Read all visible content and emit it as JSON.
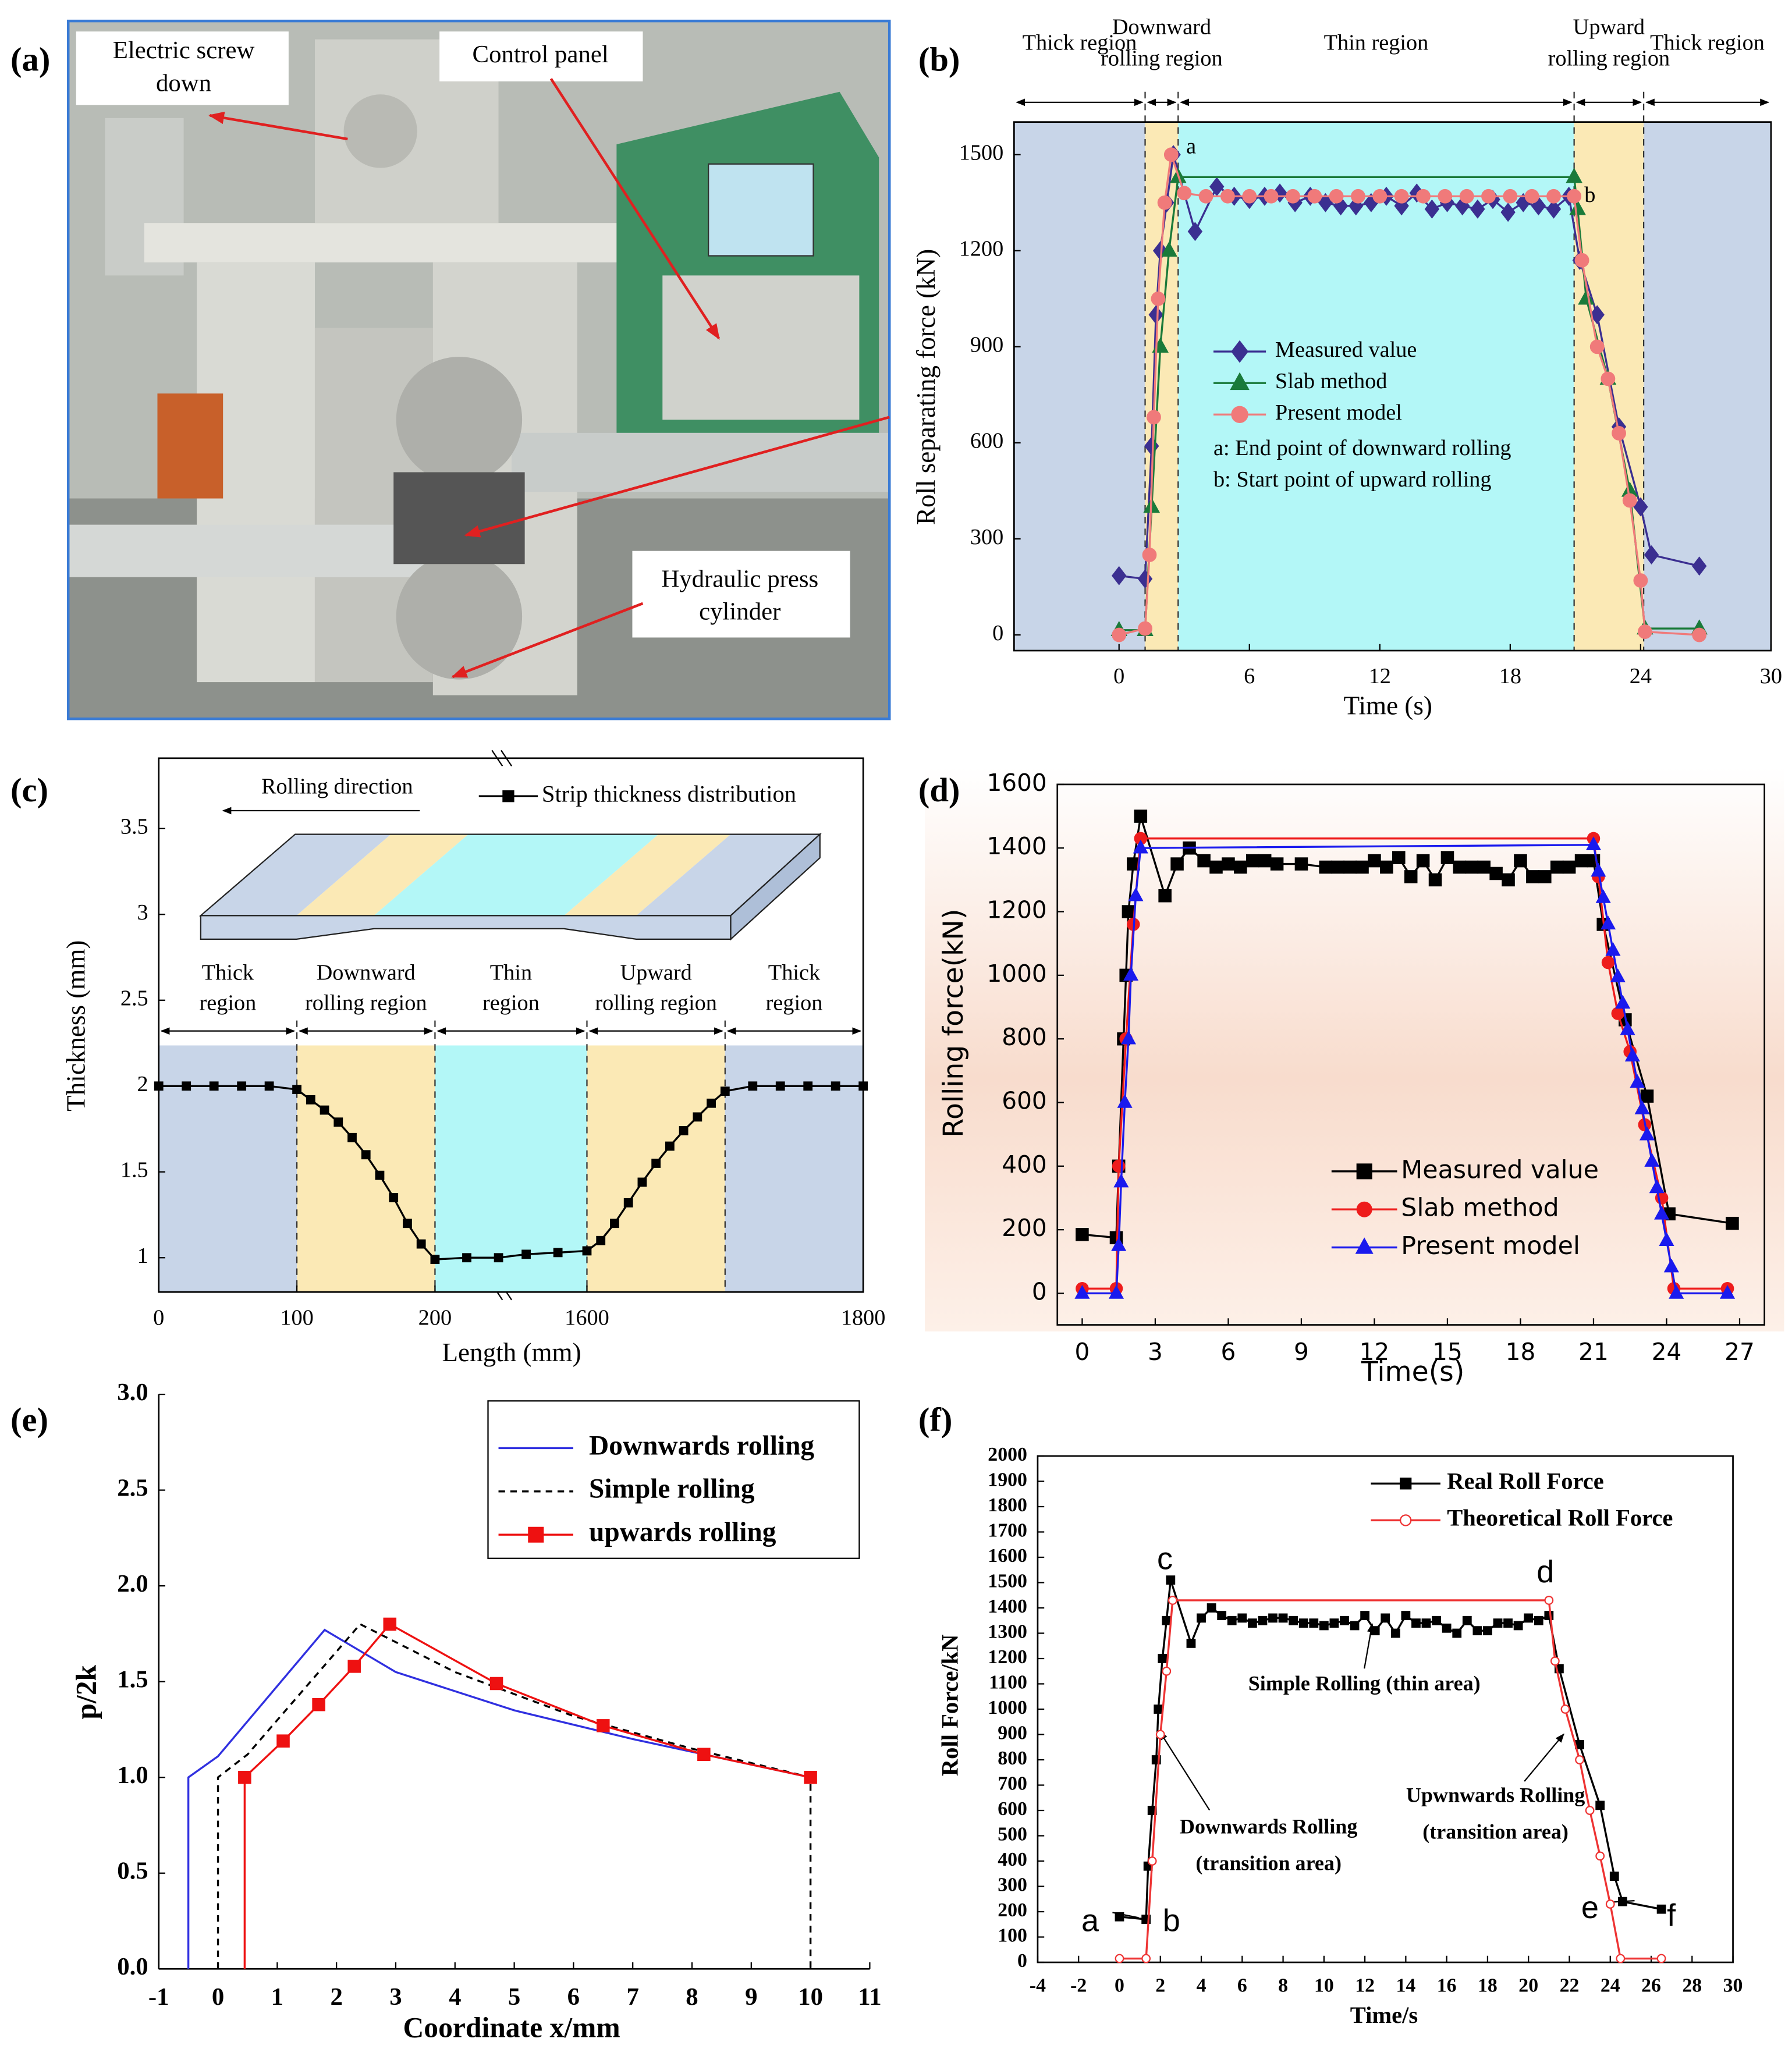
{
  "photo": {
    "panel": "(a)",
    "callouts": [
      [
        "Electric screw",
        "down"
      ],
      [
        "Control panel"
      ],
      [
        "Hydraulic press",
        "cylinder"
      ]
    ]
  },
  "chart_data": [
    {
      "panel": "(b)",
      "type": "line",
      "xlabel": "Time (s)",
      "ylabel": "Roll separating force (kN)",
      "xlim": [
        -4.83,
        30
      ],
      "ylim": [
        -49,
        1602
      ],
      "xticks": [
        0,
        6,
        12,
        18,
        24,
        30
      ],
      "yticks": [
        0,
        300,
        600,
        900,
        1200,
        1500
      ],
      "regions": [
        {
          "label": [
            "Thick region"
          ],
          "start": -4.83,
          "end": 1.2,
          "color": "#c8d5e8"
        },
        {
          "label": [
            "Downward",
            "rolling region"
          ],
          "start": 1.2,
          "end": 2.72,
          "color": "#fbe9b5"
        },
        {
          "label": [
            "Thin region"
          ],
          "start": 2.72,
          "end": 20.94,
          "color": "#b3f7f7"
        },
        {
          "label": [
            "Upward",
            "rolling region"
          ],
          "start": 20.94,
          "end": 24.14,
          "color": "#fbe9b5"
        },
        {
          "label": [
            "Thick region"
          ],
          "start": 24.14,
          "end": 30,
          "color": "#c8d5e8"
        }
      ],
      "series": [
        {
          "name": "Measured value",
          "color": "#3b2f91",
          "marker": "diamond",
          "x": [
            0,
            1.2,
            1.5,
            1.7,
            1.9,
            2.2,
            2.5,
            3.5,
            4.5,
            5.3,
            6,
            6.7,
            7.4,
            8.1,
            8.8,
            9.5,
            10.2,
            10.9,
            11.6,
            12.3,
            13,
            13.7,
            14.4,
            15.1,
            15.8,
            16.5,
            17.2,
            17.9,
            18.6,
            19.3,
            20,
            20.7,
            21.2,
            22,
            23,
            24,
            24.5,
            26.7
          ],
          "values": [
            185,
            175,
            590,
            1000,
            1200,
            1350,
            1500,
            1260,
            1400,
            1370,
            1360,
            1370,
            1380,
            1350,
            1370,
            1350,
            1340,
            1340,
            1350,
            1370,
            1340,
            1380,
            1330,
            1350,
            1340,
            1330,
            1360,
            1320,
            1350,
            1340,
            1330,
            1370,
            1170,
            1000,
            650,
            400,
            250,
            215
          ]
        },
        {
          "name": "Slab method",
          "color": "#1a7a3a",
          "marker": "triangle",
          "x": [
            0,
            1.2,
            1.5,
            1.9,
            2.3,
            2.72,
            20.94,
            21.1,
            21.5,
            22.5,
            23.5,
            24.2,
            26.7
          ],
          "values": [
            15,
            15,
            400,
            900,
            1200,
            1430,
            1430,
            1330,
            1050,
            800,
            450,
            20,
            20
          ]
        },
        {
          "name": "Present model",
          "color": "#f07a7a",
          "marker": "circle",
          "x": [
            0,
            1.2,
            1.4,
            1.6,
            1.8,
            2.1,
            2.4,
            3,
            4,
            5,
            6,
            7,
            8,
            9,
            10,
            11,
            12,
            13,
            14,
            15,
            16,
            17,
            18,
            19,
            20,
            20.94,
            21.3,
            22,
            22.5,
            23,
            23.5,
            24,
            24.2,
            26.7
          ],
          "values": [
            0,
            20,
            250,
            680,
            1050,
            1350,
            1500,
            1380,
            1370,
            1370,
            1370,
            1370,
            1370,
            1370,
            1370,
            1370,
            1370,
            1370,
            1370,
            1370,
            1370,
            1370,
            1370,
            1370,
            1370,
            1370,
            1170,
            900,
            800,
            630,
            420,
            170,
            10,
            0
          ]
        }
      ],
      "legend": "center",
      "legend_notes": [
        "a: End point of downward rolling",
        "b: Start point of upward rolling"
      ],
      "annotations": [
        "a",
        "b"
      ]
    },
    {
      "panel": "(c)",
      "type": "line",
      "xlabel": "Length (mm)",
      "ylabel": "Thickness (mm)",
      "xlim": [
        0,
        1800
      ],
      "axis_break": [
        200,
        1490
      ],
      "ylim": [
        0.8,
        3.91
      ],
      "xticks": [
        0,
        100,
        200,
        1600,
        1800
      ],
      "yticks": [
        1,
        1.5,
        2,
        2.5,
        3,
        3.5
      ],
      "schematic_label": "Rolling direction",
      "regions": [
        {
          "label": [
            "Thick",
            "region"
          ],
          "start": 0,
          "end": 100,
          "color": "#c8d5e8"
        },
        {
          "label": [
            "Downward",
            "rolling region"
          ],
          "start": 100,
          "end": 200,
          "color": "#fbe9b5"
        },
        {
          "label": [
            "Thin",
            "region"
          ],
          "start": 200,
          "end": 1600,
          "color": "#b3f7f7"
        },
        {
          "label": [
            "Upward",
            "rolling region"
          ],
          "start": 1600,
          "end": 1700,
          "color": "#fbe9b5"
        },
        {
          "label": [
            "Thick",
            "region"
          ],
          "start": 1700,
          "end": 1800,
          "color": "#c8d5e8"
        }
      ],
      "series": [
        {
          "name": "Strip thickness distribution",
          "color": "#000000",
          "marker": "square",
          "x": [
            0,
            20,
            40,
            60,
            80,
            100,
            110,
            120,
            130,
            140,
            150,
            160,
            170,
            180,
            190,
            200,
            1513,
            1536,
            1556,
            1579,
            1600,
            1610,
            1620,
            1630,
            1640,
            1650,
            1660,
            1670,
            1680,
            1690,
            1700,
            1720,
            1740,
            1760,
            1780,
            1800
          ],
          "values": [
            2,
            2,
            2,
            2,
            2,
            1.98,
            1.92,
            1.86,
            1.79,
            1.7,
            1.6,
            1.48,
            1.35,
            1.2,
            1.08,
            0.99,
            1,
            1,
            1.02,
            1.03,
            1.04,
            1.1,
            1.2,
            1.32,
            1.44,
            1.55,
            1.65,
            1.74,
            1.82,
            1.9,
            1.97,
            2,
            2,
            2,
            2,
            2
          ]
        }
      ],
      "legend": "upper right"
    },
    {
      "panel": "(d)",
      "type": "line",
      "xlabel": "Time(s)",
      "ylabel": "Rolling force(kN)",
      "xlim": [
        -1.02,
        28.02
      ],
      "ylim": [
        -99,
        1600
      ],
      "xticks": [
        0,
        3,
        6,
        9,
        12,
        15,
        18,
        21,
        24,
        27
      ],
      "yticks": [
        0,
        200,
        400,
        600,
        800,
        1000,
        1200,
        1400,
        1600
      ],
      "series": [
        {
          "name": "Measured value",
          "color": "#000000",
          "marker": "square",
          "x": [
            0,
            1.4,
            1.5,
            1.7,
            1.8,
            1.9,
            2.1,
            2.4,
            3.4,
            3.9,
            4.4,
            5,
            5.5,
            6,
            6.5,
            7,
            7.5,
            8,
            9,
            10,
            10.5,
            11,
            11.5,
            12,
            12.5,
            13,
            13.5,
            14,
            14.5,
            15,
            15.5,
            16,
            16.5,
            17,
            17.5,
            18,
            18.5,
            19,
            19.5,
            20,
            20.5,
            21,
            21.4,
            22.3,
            23.2,
            24.1,
            26.7
          ],
          "values": [
            185,
            175,
            400,
            800,
            1000,
            1200,
            1350,
            1500,
            1250,
            1350,
            1400,
            1360,
            1340,
            1350,
            1340,
            1360,
            1360,
            1350,
            1350,
            1340,
            1340,
            1340,
            1340,
            1360,
            1340,
            1370,
            1310,
            1360,
            1300,
            1370,
            1340,
            1340,
            1340,
            1320,
            1300,
            1360,
            1310,
            1310,
            1340,
            1340,
            1360,
            1360,
            1160,
            860,
            620,
            250,
            220
          ]
        },
        {
          "name": "Slab method",
          "color": "#ee1c1c",
          "marker": "circle",
          "x": [
            0,
            1.4,
            1.5,
            1.8,
            2.1,
            2.4,
            21,
            21.2,
            21.6,
            22,
            22.5,
            23.1,
            23.8,
            24.3,
            26.5
          ],
          "values": [
            15,
            15,
            400,
            800,
            1160,
            1430,
            1430,
            1310,
            1040,
            880,
            760,
            530,
            300,
            15,
            15
          ]
        },
        {
          "name": "Present model",
          "color": "#1a1aee",
          "marker": "triangle",
          "x": [
            0,
            1.4,
            1.5,
            1.6,
            1.75,
            1.9,
            2.0,
            2.2,
            2.4,
            21,
            21.2,
            21.4,
            21.6,
            21.8,
            22,
            22.2,
            22.4,
            22.6,
            22.8,
            23,
            23.2,
            23.4,
            23.6,
            23.8,
            24,
            24.2,
            24.4,
            26.5
          ],
          "values": [
            0,
            0,
            150,
            350,
            600,
            800,
            1000,
            1250,
            1400,
            1410,
            1327,
            1244,
            1161,
            1078,
            995,
            912,
            829,
            746,
            663,
            580,
            498,
            415,
            332,
            249,
            166,
            83,
            0,
            0
          ]
        }
      ],
      "legend": "lower center"
    },
    {
      "panel": "(e)",
      "type": "line",
      "xlabel": "Coordinate x/mm",
      "ylabel": "p/2k",
      "xlim": [
        -1,
        11
      ],
      "ylim": [
        0,
        3
      ],
      "xticks": [
        -1,
        0,
        1,
        2,
        3,
        4,
        5,
        6,
        7,
        8,
        9,
        10,
        11
      ],
      "yticks": [
        {
          "value": 0,
          "label": "0.0"
        },
        {
          "value": 0.5,
          "label": "0.5"
        },
        {
          "value": 1,
          "label": "1.0"
        },
        {
          "value": 1.5,
          "label": "1.5"
        },
        {
          "value": 2,
          "label": "2.0"
        },
        {
          "value": 2.5,
          "label": "2.5"
        },
        {
          "value": 3,
          "label": "3.0"
        }
      ],
      "series": [
        {
          "name": "Downwards rolling",
          "color": "#3030e0",
          "marker": "none",
          "x": [
            -0.5,
            -0.5,
            0,
            1.8,
            3,
            5,
            7,
            10
          ],
          "values": [
            0,
            1.0,
            1.11,
            1.77,
            1.55,
            1.35,
            1.2,
            1.0
          ]
        },
        {
          "name": "Simple rolling",
          "color": "#000000",
          "marker": "none",
          "dash": true,
          "x": [
            0,
            0,
            0.5,
            2.4,
            4,
            6,
            8,
            10,
            10
          ],
          "values": [
            0,
            1.0,
            1.12,
            1.8,
            1.55,
            1.32,
            1.15,
            1.0,
            0
          ]
        },
        {
          "name": "upwards rolling",
          "color": "#ee1111",
          "marker": "square",
          "x": [
            0.45,
            0.45,
            1.1,
            1.7,
            2.3,
            2.9,
            4.7,
            6.5,
            8.2,
            10
          ],
          "values": [
            0,
            1.0,
            1.19,
            1.38,
            1.58,
            1.8,
            1.49,
            1.27,
            1.12,
            1.0
          ]
        }
      ],
      "legend": "upper right"
    },
    {
      "panel": "(f)",
      "type": "line",
      "xlabel": "Time/s",
      "ylabel": "Roll Force/kN",
      "xlim": [
        -4,
        30
      ],
      "ylim": [
        0,
        2000
      ],
      "xticks": [
        -4,
        -2,
        0,
        2,
        4,
        6,
        8,
        10,
        12,
        14,
        16,
        18,
        20,
        22,
        24,
        26,
        28,
        30
      ],
      "yticks": [
        0,
        100,
        200,
        300,
        400,
        500,
        600,
        700,
        800,
        900,
        1000,
        1100,
        1200,
        1300,
        1400,
        1500,
        1600,
        1700,
        1800,
        1900,
        2000
      ],
      "series": [
        {
          "name": "Real Roll Force",
          "color": "#000000",
          "marker": "square",
          "x": [
            0,
            1.3,
            1.4,
            1.6,
            1.8,
            1.9,
            2.1,
            2.3,
            2.5,
            3.5,
            4,
            4.5,
            5,
            5.5,
            6,
            6.5,
            7,
            7.5,
            8,
            8.5,
            9,
            9.5,
            10,
            10.5,
            11,
            11.5,
            12,
            12.5,
            13,
            13.5,
            14,
            14.5,
            15,
            15.5,
            16,
            16.5,
            17,
            17.5,
            18,
            18.5,
            19,
            19.5,
            20,
            20.5,
            21,
            21.5,
            22.5,
            23.5,
            24.2,
            24.6,
            26.5
          ],
          "values": [
            180,
            170,
            380,
            600,
            800,
            1000,
            1200,
            1350,
            1510,
            1260,
            1360,
            1400,
            1370,
            1350,
            1360,
            1340,
            1350,
            1360,
            1360,
            1350,
            1340,
            1340,
            1330,
            1340,
            1350,
            1330,
            1370,
            1310,
            1360,
            1300,
            1370,
            1340,
            1340,
            1350,
            1320,
            1300,
            1350,
            1310,
            1310,
            1340,
            1340,
            1330,
            1360,
            1350,
            1370,
            1160,
            860,
            620,
            340,
            240,
            210
          ]
        },
        {
          "name": "Theoretical Roll Force",
          "color": "#ee3333",
          "marker": "circle",
          "hollow": true,
          "x": [
            0,
            1.3,
            1.6,
            2,
            2.3,
            2.6,
            21,
            21.3,
            21.8,
            22.5,
            23,
            23.5,
            24,
            24.5,
            26.5
          ],
          "values": [
            15,
            15,
            400,
            900,
            1150,
            1430,
            1430,
            1190,
            1000,
            800,
            600,
            420,
            230,
            15,
            15
          ]
        }
      ],
      "legend": "upper right",
      "annotations": [
        "c",
        "d",
        "a",
        "b",
        "e",
        "f",
        "Simple Rolling (thin area)",
        "Downwards Rolling",
        "(transition area)",
        "Upwnwards Rolling",
        "(transition area)"
      ]
    }
  ]
}
